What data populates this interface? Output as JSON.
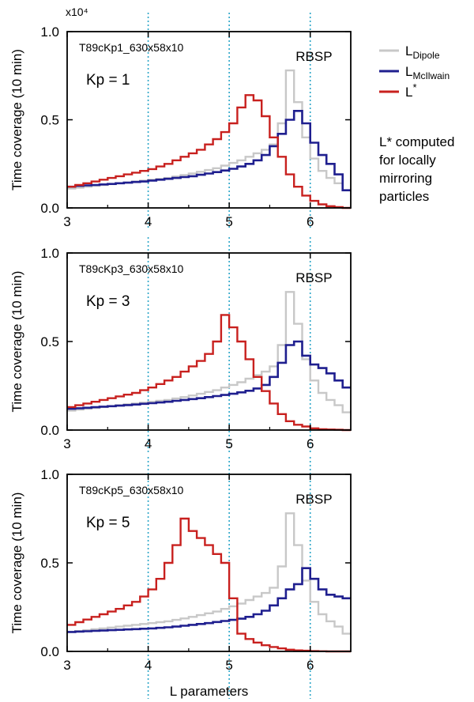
{
  "chart_data": [
    {
      "type": "line",
      "ylabel": "Time coverage (10 min)",
      "multiplier": "x10⁴",
      "tag": "T89cKp1_630x58x10",
      "kp_label": "Kp = 1",
      "mission_label": "RBSP",
      "xlim": [
        3,
        6.5
      ],
      "ylim": [
        0,
        1.0
      ],
      "x_ticks": [
        "3",
        "4",
        "5",
        "6"
      ],
      "y_ticks": [
        "0.0",
        "0.5",
        "1.0"
      ],
      "reference_lines_x": [
        4,
        5,
        6
      ],
      "step": 0.1,
      "series": [
        {
          "name": "L_Dipole",
          "color": "#c8c8c8",
          "x": [
            3.0,
            3.1,
            3.2,
            3.3,
            3.4,
            3.5,
            3.6,
            3.7,
            3.8,
            3.9,
            4.0,
            4.1,
            4.2,
            4.3,
            4.4,
            4.5,
            4.6,
            4.7,
            4.8,
            4.9,
            5.0,
            5.1,
            5.2,
            5.3,
            5.4,
            5.5,
            5.6,
            5.7,
            5.8,
            5.9,
            6.0,
            6.1,
            6.2,
            6.3,
            6.4
          ],
          "y": [
            0.11,
            0.115,
            0.12,
            0.125,
            0.13,
            0.135,
            0.14,
            0.145,
            0.15,
            0.155,
            0.16,
            0.165,
            0.17,
            0.178,
            0.186,
            0.195,
            0.205,
            0.215,
            0.225,
            0.24,
            0.255,
            0.27,
            0.29,
            0.31,
            0.33,
            0.36,
            0.48,
            0.78,
            0.6,
            0.4,
            0.28,
            0.21,
            0.17,
            0.14,
            0.1
          ]
        },
        {
          "name": "L_McIlwain",
          "color": "#1f1f8f",
          "x": [
            3.0,
            3.1,
            3.2,
            3.3,
            3.4,
            3.5,
            3.6,
            3.7,
            3.8,
            3.9,
            4.0,
            4.1,
            4.2,
            4.3,
            4.4,
            4.5,
            4.6,
            4.7,
            4.8,
            4.9,
            5.0,
            5.1,
            5.2,
            5.3,
            5.4,
            5.5,
            5.6,
            5.7,
            5.8,
            5.9,
            6.0,
            6.1,
            6.2,
            6.3,
            6.4
          ],
          "y": [
            0.12,
            0.125,
            0.128,
            0.13,
            0.133,
            0.136,
            0.14,
            0.143,
            0.147,
            0.15,
            0.155,
            0.16,
            0.165,
            0.17,
            0.175,
            0.18,
            0.188,
            0.195,
            0.203,
            0.212,
            0.222,
            0.235,
            0.25,
            0.27,
            0.3,
            0.35,
            0.42,
            0.5,
            0.55,
            0.48,
            0.37,
            0.3,
            0.25,
            0.19,
            0.1
          ]
        },
        {
          "name": "L*",
          "color": "#c8201e",
          "x": [
            3.0,
            3.1,
            3.2,
            3.3,
            3.4,
            3.5,
            3.6,
            3.7,
            3.8,
            3.9,
            4.0,
            4.1,
            4.2,
            4.3,
            4.4,
            4.5,
            4.6,
            4.7,
            4.8,
            4.9,
            5.0,
            5.1,
            5.2,
            5.3,
            5.4,
            5.5,
            5.6,
            5.7,
            5.8,
            5.9,
            6.0,
            6.1,
            6.2,
            6.3,
            6.4
          ],
          "y": [
            0.12,
            0.13,
            0.14,
            0.15,
            0.16,
            0.17,
            0.18,
            0.19,
            0.2,
            0.21,
            0.22,
            0.235,
            0.25,
            0.27,
            0.29,
            0.31,
            0.33,
            0.36,
            0.39,
            0.43,
            0.48,
            0.57,
            0.64,
            0.61,
            0.52,
            0.4,
            0.29,
            0.19,
            0.12,
            0.07,
            0.04,
            0.02,
            0.01,
            0.005,
            0.0
          ]
        }
      ]
    },
    {
      "type": "line",
      "ylabel": "Time coverage (10 min)",
      "tag": "T89cKp3_630x58x10",
      "kp_label": "Kp = 3",
      "mission_label": "RBSP",
      "xlim": [
        3,
        6.5
      ],
      "ylim": [
        0,
        1.0
      ],
      "x_ticks": [
        "3",
        "4",
        "5",
        "6"
      ],
      "y_ticks": [
        "0.0",
        "0.5",
        "1.0"
      ],
      "reference_lines_x": [
        4,
        5,
        6
      ],
      "step": 0.1,
      "series": [
        {
          "name": "L_Dipole",
          "color": "#c8c8c8",
          "x": [
            3.0,
            3.1,
            3.2,
            3.3,
            3.4,
            3.5,
            3.6,
            3.7,
            3.8,
            3.9,
            4.0,
            4.1,
            4.2,
            4.3,
            4.4,
            4.5,
            4.6,
            4.7,
            4.8,
            4.9,
            5.0,
            5.1,
            5.2,
            5.3,
            5.4,
            5.5,
            5.6,
            5.7,
            5.8,
            5.9,
            6.0,
            6.1,
            6.2,
            6.3,
            6.4
          ],
          "y": [
            0.11,
            0.115,
            0.12,
            0.125,
            0.13,
            0.135,
            0.14,
            0.145,
            0.15,
            0.155,
            0.16,
            0.165,
            0.17,
            0.178,
            0.186,
            0.195,
            0.205,
            0.215,
            0.225,
            0.24,
            0.255,
            0.27,
            0.29,
            0.31,
            0.33,
            0.36,
            0.48,
            0.78,
            0.6,
            0.4,
            0.28,
            0.21,
            0.17,
            0.14,
            0.1
          ]
        },
        {
          "name": "L_McIlwain",
          "color": "#1f1f8f",
          "x": [
            3.0,
            3.1,
            3.2,
            3.3,
            3.4,
            3.5,
            3.6,
            3.7,
            3.8,
            3.9,
            4.0,
            4.1,
            4.2,
            4.3,
            4.4,
            4.5,
            4.6,
            4.7,
            4.8,
            4.9,
            5.0,
            5.1,
            5.2,
            5.3,
            5.4,
            5.5,
            5.6,
            5.7,
            5.8,
            5.9,
            6.0,
            6.1,
            6.2,
            6.3,
            6.4
          ],
          "y": [
            0.12,
            0.123,
            0.126,
            0.129,
            0.132,
            0.135,
            0.138,
            0.141,
            0.144,
            0.148,
            0.152,
            0.156,
            0.16,
            0.165,
            0.17,
            0.175,
            0.18,
            0.186,
            0.192,
            0.198,
            0.205,
            0.213,
            0.222,
            0.235,
            0.255,
            0.3,
            0.38,
            0.48,
            0.5,
            0.42,
            0.37,
            0.35,
            0.32,
            0.28,
            0.24
          ]
        },
        {
          "name": "L*",
          "color": "#c8201e",
          "x": [
            3.0,
            3.1,
            3.2,
            3.3,
            3.4,
            3.5,
            3.6,
            3.7,
            3.8,
            3.9,
            4.0,
            4.1,
            4.2,
            4.3,
            4.4,
            4.5,
            4.6,
            4.7,
            4.8,
            4.9,
            5.0,
            5.1,
            5.2,
            5.3,
            5.4,
            5.5,
            5.6,
            5.7,
            5.8,
            5.9,
            6.0,
            6.1,
            6.2,
            6.3,
            6.4
          ],
          "y": [
            0.13,
            0.14,
            0.15,
            0.16,
            0.17,
            0.18,
            0.19,
            0.2,
            0.21,
            0.225,
            0.24,
            0.26,
            0.28,
            0.3,
            0.33,
            0.36,
            0.39,
            0.43,
            0.5,
            0.65,
            0.58,
            0.5,
            0.4,
            0.3,
            0.22,
            0.15,
            0.09,
            0.05,
            0.03,
            0.02,
            0.01,
            0.005,
            0.003,
            0.002,
            0.0
          ]
        }
      ]
    },
    {
      "type": "line",
      "ylabel": "Time coverage (10 min)",
      "xlabel": "L parameters",
      "tag": "T89cKp5_630x58x10",
      "kp_label": "Kp = 5",
      "mission_label": "RBSP",
      "xlim": [
        3,
        6.5
      ],
      "ylim": [
        0,
        1.0
      ],
      "x_ticks": [
        "3",
        "4",
        "5",
        "6"
      ],
      "y_ticks": [
        "0.0",
        "0.5",
        "1.0"
      ],
      "reference_lines_x": [
        4,
        5,
        6
      ],
      "step": 0.1,
      "series": [
        {
          "name": "L_Dipole",
          "color": "#c8c8c8",
          "x": [
            3.0,
            3.1,
            3.2,
            3.3,
            3.4,
            3.5,
            3.6,
            3.7,
            3.8,
            3.9,
            4.0,
            4.1,
            4.2,
            4.3,
            4.4,
            4.5,
            4.6,
            4.7,
            4.8,
            4.9,
            5.0,
            5.1,
            5.2,
            5.3,
            5.4,
            5.5,
            5.6,
            5.7,
            5.8,
            5.9,
            6.0,
            6.1,
            6.2,
            6.3,
            6.4
          ],
          "y": [
            0.11,
            0.115,
            0.12,
            0.125,
            0.13,
            0.135,
            0.14,
            0.145,
            0.15,
            0.155,
            0.16,
            0.165,
            0.17,
            0.178,
            0.186,
            0.195,
            0.205,
            0.215,
            0.225,
            0.24,
            0.255,
            0.27,
            0.29,
            0.31,
            0.33,
            0.36,
            0.48,
            0.78,
            0.6,
            0.4,
            0.28,
            0.21,
            0.17,
            0.14,
            0.1
          ]
        },
        {
          "name": "L_McIlwain",
          "color": "#1f1f8f",
          "x": [
            3.0,
            3.1,
            3.2,
            3.3,
            3.4,
            3.5,
            3.6,
            3.7,
            3.8,
            3.9,
            4.0,
            4.1,
            4.2,
            4.3,
            4.4,
            4.5,
            4.6,
            4.7,
            4.8,
            4.9,
            5.0,
            5.1,
            5.2,
            5.3,
            5.4,
            5.5,
            5.6,
            5.7,
            5.8,
            5.9,
            6.0,
            6.1,
            6.2,
            6.3,
            6.4
          ],
          "y": [
            0.11,
            0.112,
            0.114,
            0.116,
            0.118,
            0.12,
            0.122,
            0.124,
            0.126,
            0.128,
            0.13,
            0.133,
            0.136,
            0.14,
            0.145,
            0.15,
            0.155,
            0.16,
            0.166,
            0.172,
            0.178,
            0.185,
            0.195,
            0.21,
            0.23,
            0.26,
            0.3,
            0.35,
            0.38,
            0.47,
            0.41,
            0.35,
            0.32,
            0.31,
            0.3
          ]
        },
        {
          "name": "L*",
          "color": "#c8201e",
          "x": [
            3.0,
            3.1,
            3.2,
            3.3,
            3.4,
            3.5,
            3.6,
            3.7,
            3.8,
            3.9,
            4.0,
            4.1,
            4.2,
            4.3,
            4.4,
            4.5,
            4.6,
            4.7,
            4.8,
            4.9,
            5.0,
            5.1,
            5.2,
            5.3,
            5.4,
            5.5,
            5.6,
            5.7,
            5.8,
            5.9,
            6.0,
            6.1,
            6.2,
            6.3,
            6.4
          ],
          "y": [
            0.15,
            0.165,
            0.18,
            0.195,
            0.21,
            0.225,
            0.24,
            0.26,
            0.28,
            0.31,
            0.35,
            0.41,
            0.5,
            0.6,
            0.75,
            0.68,
            0.64,
            0.6,
            0.55,
            0.5,
            0.3,
            0.1,
            0.07,
            0.05,
            0.035,
            0.025,
            0.017,
            0.01,
            0.006,
            0.004,
            0.002,
            0.001,
            0.0,
            0.0,
            0.0
          ]
        }
      ]
    }
  ],
  "legend": {
    "items": [
      {
        "base": "L",
        "sub": "Dipole",
        "sup": "",
        "color": "#c8c8c8"
      },
      {
        "base": "L",
        "sub": "McIlwain",
        "sup": "",
        "color": "#1f1f8f"
      },
      {
        "base": "L",
        "sub": "",
        "sup": "*",
        "color": "#c8201e"
      }
    ]
  },
  "note": {
    "lines": [
      "L* computed",
      "for locally",
      "mirroring",
      "particles"
    ]
  }
}
